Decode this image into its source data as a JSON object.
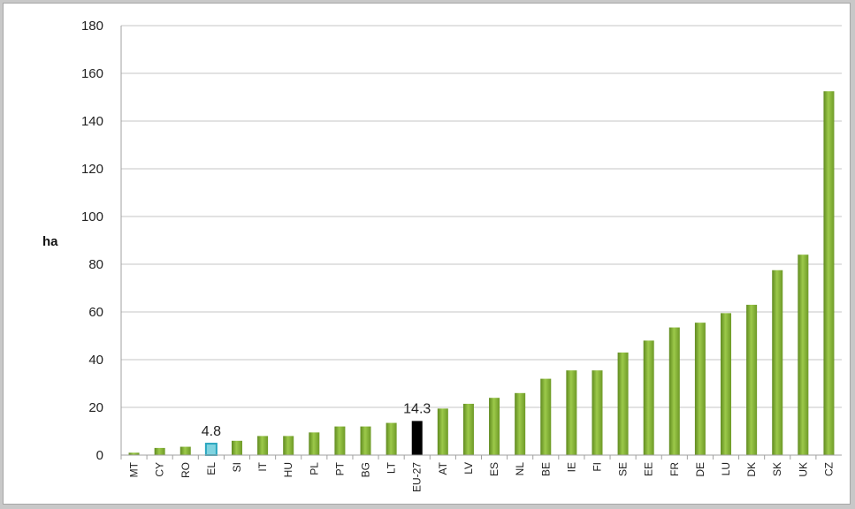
{
  "chart_data": {
    "type": "bar",
    "ylabel": "ha",
    "xlabel": "",
    "ylim": [
      0,
      180
    ],
    "yticks": [
      0,
      20,
      40,
      60,
      80,
      100,
      120,
      140,
      160,
      180
    ],
    "grid": true,
    "legend": "none",
    "categories": [
      "MT",
      "CY",
      "RO",
      "EL",
      "SI",
      "IT",
      "HU",
      "PL",
      "PT",
      "BG",
      "LT",
      "EU-27",
      "AT",
      "LV",
      "ES",
      "NL",
      "BE",
      "IE",
      "FI",
      "SE",
      "EE",
      "FR",
      "DE",
      "LU",
      "DK",
      "SK",
      "UK",
      "CZ"
    ],
    "values": [
      1,
      3,
      3.5,
      4.8,
      6,
      8,
      8,
      9.5,
      12,
      12,
      13.5,
      14.3,
      19.5,
      21.5,
      24,
      26,
      32,
      35.5,
      35.5,
      43,
      48,
      53.5,
      55.5,
      59.5,
      63,
      77.5,
      84,
      152.5
    ],
    "data_labels": [
      {
        "category": "EL",
        "text": "4.8"
      },
      {
        "category": "EU-27",
        "text": "14.3"
      }
    ],
    "colors": {
      "default_bar": "#8ab43a",
      "default_bar_dark": "#5f8a1f",
      "highlight_el": "#7fd3e0",
      "highlight_el_border": "#2aa6bf",
      "highlight_eu": "#000000",
      "grid": "#c4c4c4",
      "axis": "#a0a0a0"
    }
  }
}
